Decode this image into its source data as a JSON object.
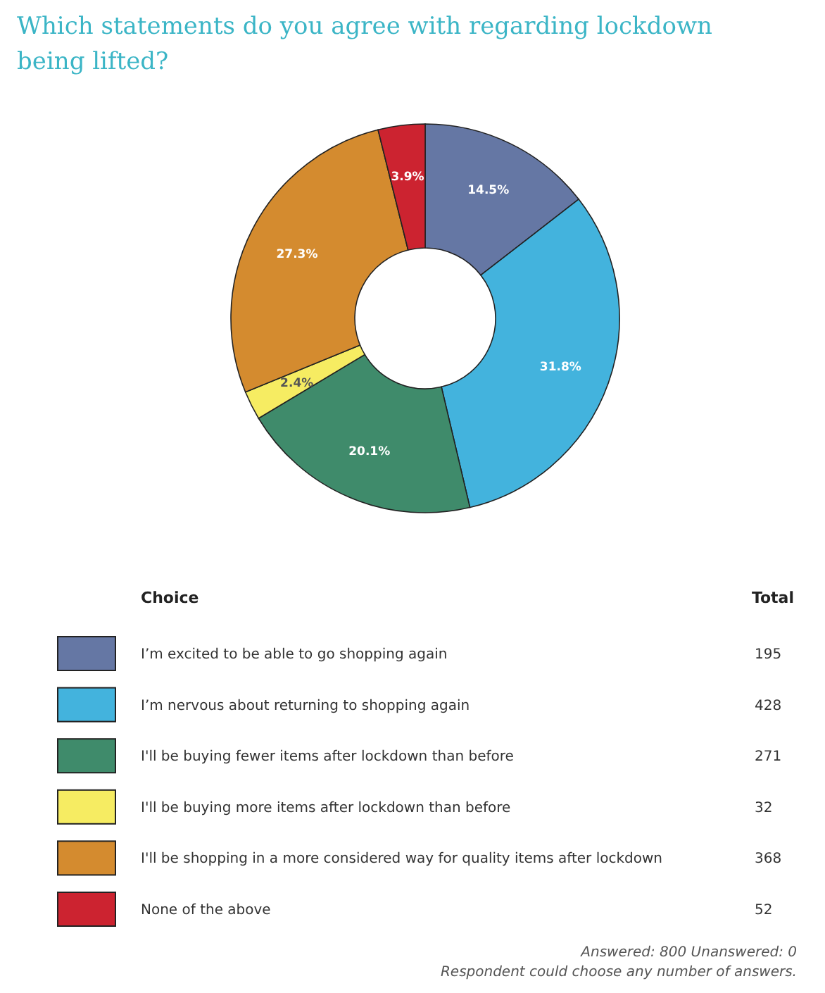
{
  "chart_data": [
    {
      "type": "donut",
      "title": "Which statements do you agree with regarding lockdown being lifted?",
      "legend_title": "Choice",
      "categories": [
        "I’m excited to be able to go shopping again",
        "I’m nervous about returning to shopping again",
        "I'll be buying fewer items after lockdown than before",
        "I'll be buying more items after lockdown than before",
        "I'll be shopping in a more considered way for quality items after lockdown",
        "None of the above"
      ],
      "values": [
        14.5,
        31.8,
        20.1,
        2.4,
        27.3,
        3.9
      ],
      "value_labels": [
        "14.5%",
        "31.8%",
        "20.1%",
        "2.4%",
        "27.3%",
        "3.9%"
      ],
      "colors": [
        "#6577a4",
        "#43b3dd",
        "#3f8b6b",
        "#f6ec62",
        "#d48b2f",
        "#cc2330"
      ],
      "legend": "bottom"
    },
    {
      "type": "other",
      "title": "Total",
      "values": [
        195,
        428,
        271,
        32,
        368,
        52
      ],
      "data_labels": true,
      "annotations": [
        "Answered: 800 Unanswered: 0",
        "Respondent could choose any number of answers."
      ]
    }
  ]
}
